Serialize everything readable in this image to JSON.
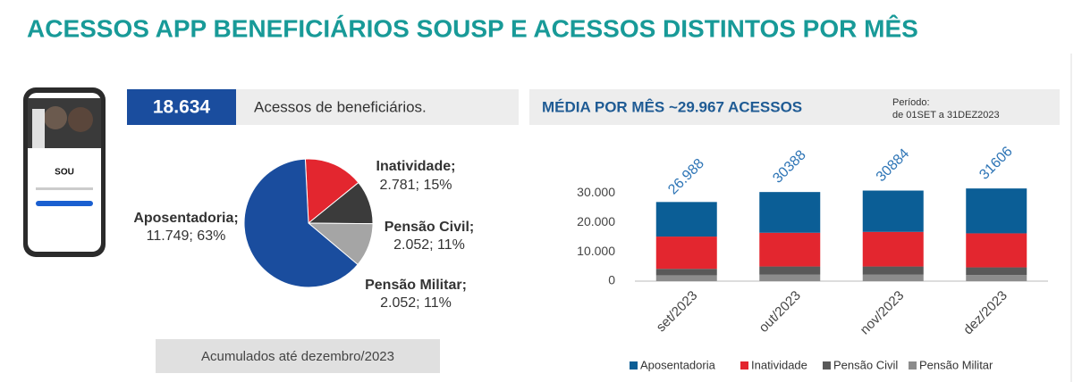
{
  "header": {
    "title": "ACESSOS APP BENEFICIÁRIOS SOUSP E ACESSOS DISTINTOS POR MÊS"
  },
  "phone": {
    "brand": "SOU"
  },
  "kpi": {
    "value": "18.634",
    "label": "Acessos de beneficiários."
  },
  "footnote": "Acumulados até dezembro/2023",
  "chart_data": [
    {
      "type": "pie",
      "categories": [
        "Inatividade;",
        "Pensão Civil;",
        "Pensão Militar;",
        "Aposentadoria;"
      ],
      "values": [
        2781,
        2052,
        2052,
        11749
      ],
      "value_labels": [
        "2.781; 15%",
        "2.052; 11%",
        "2.052; 11%",
        "11.749; 63%"
      ],
      "colors": [
        "#e3262f",
        "#3b3b3b",
        "#a5a5a5",
        "#1a4d9e"
      ]
    },
    {
      "type": "bar",
      "stacked": true,
      "title": "MÉDIA POR MÊS ~29.967 ACESSOS",
      "subtitle": [
        "Período:",
        "de 01SET a 31DEZ2023"
      ],
      "categories": [
        "set/2023",
        "out/2023",
        "nov/2023",
        "dez/2023"
      ],
      "series": [
        {
          "name": "Aposentadoria",
          "color": "#0b5e96",
          "values": [
            11788,
            13888,
            14084,
            15306
          ]
        },
        {
          "name": "Inatividade",
          "color": "#e3262f",
          "values": [
            11000,
            11500,
            11800,
            11600
          ]
        },
        {
          "name": "Pensão Civil",
          "color": "#595959",
          "values": [
            2200,
            2800,
            2800,
            2600
          ]
        },
        {
          "name": "Pensão Militar",
          "color": "#8c8c8c",
          "values": [
            2000,
            2200,
            2200,
            2100
          ]
        }
      ],
      "totals": {
        "values": [
          26988,
          30388,
          30884,
          31606
        ],
        "value_labels": [
          "26.988",
          "30388",
          "30884",
          "31606"
        ],
        "color": "#2e75b6"
      },
      "ylim": [
        0,
        35000
      ],
      "yticks": [
        0,
        {
          "value": 10000,
          "label": "10.000"
        },
        {
          "value": 20000,
          "label": "20.000"
        },
        {
          "value": 30000,
          "label": "30.000"
        }
      ],
      "legend": "bottom"
    }
  ]
}
